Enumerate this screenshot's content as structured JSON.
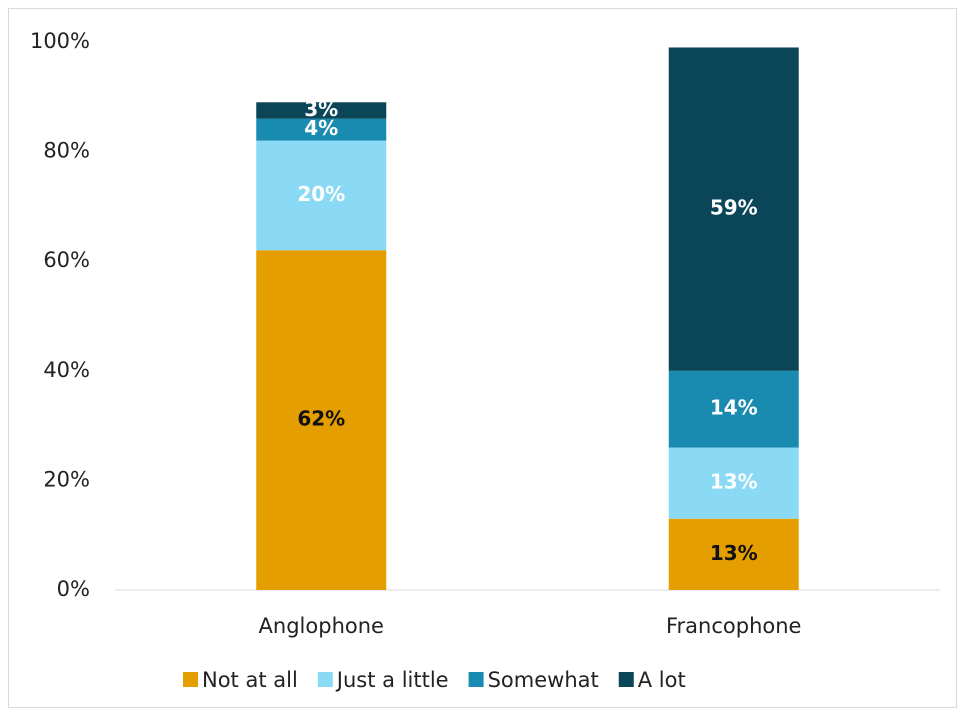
{
  "chart_data": {
    "type": "stacked_bar",
    "categories": [
      "Anglophone",
      "Francophone"
    ],
    "series": [
      {
        "name": "Not at all",
        "color": "#e59e00",
        "values": [
          62,
          13
        ],
        "value_labels": [
          "62%",
          "13%"
        ]
      },
      {
        "name": "Just a little",
        "color": "#8adaf5",
        "values": [
          20,
          13
        ],
        "value_labels": [
          "20%",
          "13%"
        ]
      },
      {
        "name": "Somewhat",
        "color": "#1a8bb0",
        "values": [
          4,
          14
        ],
        "value_labels": [
          "4%",
          "14%"
        ]
      },
      {
        "name": "A lot",
        "color": "#0a4558",
        "values": [
          3,
          59
        ],
        "value_labels": [
          "3%",
          "59%"
        ]
      }
    ],
    "ylim": [
      0,
      100
    ],
    "yticks": [
      {
        "value": 0,
        "label": "0%"
      },
      {
        "value": 20,
        "label": "20%"
      },
      {
        "value": 40,
        "label": "40%"
      },
      {
        "value": 60,
        "label": "60%"
      },
      {
        "value": 80,
        "label": "80%"
      },
      {
        "value": 100,
        "label": "100%"
      }
    ],
    "grid": false,
    "legend": "bottom"
  }
}
